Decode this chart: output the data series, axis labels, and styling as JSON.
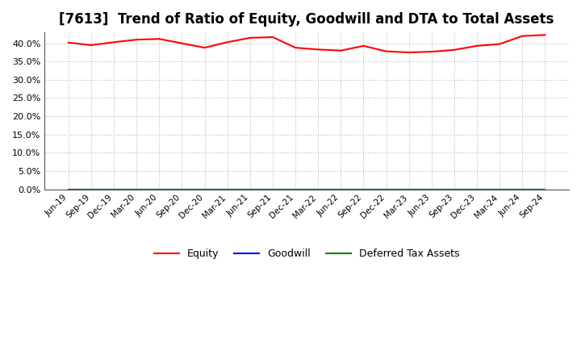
{
  "title": "[7613]  Trend of Ratio of Equity, Goodwill and DTA to Total Assets",
  "x_labels": [
    "Jun-19",
    "Sep-19",
    "Dec-19",
    "Mar-20",
    "Jun-20",
    "Sep-20",
    "Dec-20",
    "Mar-21",
    "Jun-21",
    "Sep-21",
    "Dec-21",
    "Mar-22",
    "Jun-22",
    "Sep-22",
    "Dec-22",
    "Mar-23",
    "Jun-23",
    "Sep-23",
    "Dec-23",
    "Mar-24",
    "Jun-24",
    "Sep-24"
  ],
  "equity": [
    40.2,
    39.5,
    40.3,
    41.0,
    41.2,
    40.0,
    38.8,
    40.3,
    41.5,
    41.7,
    38.8,
    38.3,
    38.0,
    39.3,
    37.8,
    37.5,
    37.7,
    38.2,
    39.3,
    39.8,
    42.0,
    42.3
  ],
  "goodwill": [
    0.0,
    0.0,
    0.0,
    0.0,
    0.0,
    0.0,
    0.0,
    0.0,
    0.0,
    0.0,
    0.0,
    0.0,
    0.0,
    0.0,
    0.0,
    0.0,
    0.0,
    0.0,
    0.0,
    0.0,
    0.0,
    0.0
  ],
  "deferred_tax": [
    0.0,
    0.0,
    0.0,
    0.0,
    0.0,
    0.0,
    0.0,
    0.0,
    0.0,
    0.0,
    0.0,
    0.0,
    0.0,
    0.0,
    0.0,
    0.0,
    0.0,
    0.0,
    0.0,
    0.0,
    0.0,
    0.0
  ],
  "equity_color": "#ff0000",
  "goodwill_color": "#0000ff",
  "deferred_tax_color": "#008000",
  "ylim": [
    0,
    43
  ],
  "yticks": [
    0.0,
    5.0,
    10.0,
    15.0,
    20.0,
    25.0,
    30.0,
    35.0,
    40.0
  ],
  "background_color": "#ffffff",
  "plot_bg_color": "#ffffff",
  "grid_color": "#bbbbbb",
  "title_fontsize": 12,
  "legend_labels": [
    "Equity",
    "Goodwill",
    "Deferred Tax Assets"
  ]
}
